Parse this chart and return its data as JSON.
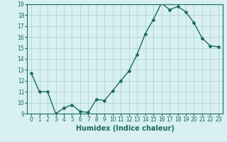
{
  "x": [
    0,
    1,
    2,
    3,
    4,
    5,
    6,
    7,
    8,
    9,
    10,
    11,
    12,
    13,
    14,
    15,
    16,
    17,
    18,
    19,
    20,
    21,
    22,
    23
  ],
  "y": [
    12.7,
    11.0,
    11.0,
    9.0,
    9.5,
    9.8,
    9.2,
    9.1,
    10.3,
    10.2,
    11.1,
    12.0,
    12.9,
    14.4,
    16.3,
    17.6,
    19.1,
    18.5,
    18.8,
    18.3,
    17.3,
    15.9,
    15.2,
    15.1
  ],
  "line_color": "#1a6b5a",
  "marker": "D",
  "marker_size": 2,
  "bg_color": "#d8f0f0",
  "grid_color": "#a8cece",
  "xlabel": "Humidex (Indice chaleur)",
  "ylim": [
    9,
    19
  ],
  "xlim_min": -0.5,
  "xlim_max": 23.5,
  "yticks": [
    9,
    10,
    11,
    12,
    13,
    14,
    15,
    16,
    17,
    18,
    19
  ],
  "xticks": [
    0,
    1,
    2,
    3,
    4,
    5,
    6,
    7,
    8,
    9,
    10,
    11,
    12,
    13,
    14,
    15,
    16,
    17,
    18,
    19,
    20,
    21,
    22,
    23
  ],
  "tick_label_size": 5.5,
  "xlabel_size": 7,
  "line_width": 1.0
}
